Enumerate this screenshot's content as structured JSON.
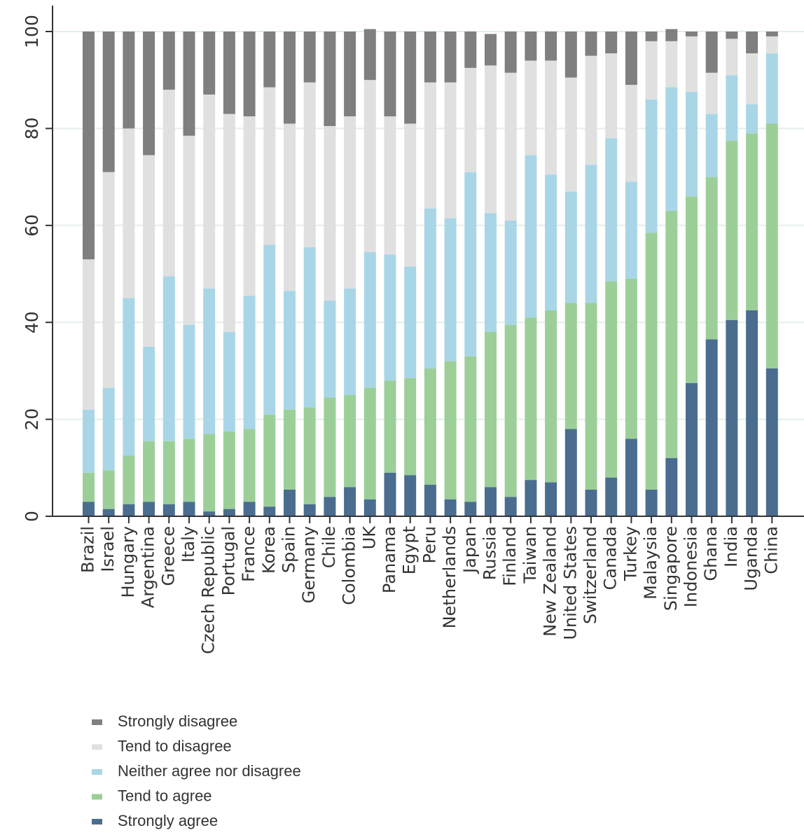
{
  "chart_data": {
    "type": "bar",
    "stacked": true,
    "ylim": [
      0,
      100
    ],
    "yticks": [
      0,
      20,
      40,
      60,
      80,
      100
    ],
    "grid": true,
    "legend_position": "bottom-left",
    "categories": [
      "Brazil",
      "Israel",
      "Hungary",
      "Argentina",
      "Greece",
      "Italy",
      "Czech Republic",
      "Portugal",
      "France",
      "Korea",
      "Spain",
      "Germany",
      "Chile",
      "Colombia",
      "UK",
      "Panama",
      "Egypt",
      "Peru",
      "Netherlands",
      "Japan",
      "Russia",
      "Finland",
      "Taiwan",
      "New Zealand",
      "United States",
      "Switzerland",
      "Canada",
      "Turkey",
      "Malaysia",
      "Singapore",
      "Indonesia",
      "Ghana",
      "India",
      "Uganda",
      "China"
    ],
    "series": [
      {
        "name": "Strongly agree",
        "color": "#4a6d8f",
        "values": [
          3,
          1.5,
          2.5,
          3,
          2.5,
          3,
          1,
          1.5,
          3,
          2,
          5.5,
          2.5,
          4,
          6,
          3.5,
          9,
          8.5,
          6.5,
          3.5,
          3,
          6,
          4,
          7.5,
          7,
          18,
          5.5,
          8,
          16,
          5.5,
          12,
          27.5,
          36.5,
          40.5,
          42.5,
          30.5
        ]
      },
      {
        "name": "Tend to agree",
        "color": "#9ccf98",
        "values": [
          6,
          8,
          10,
          12.5,
          13,
          13,
          16,
          16,
          15,
          19,
          16.5,
          20,
          20.5,
          19,
          23,
          19,
          20,
          24,
          28.5,
          30,
          32,
          35.5,
          33.5,
          35.5,
          26,
          38.5,
          40.5,
          33,
          53,
          51,
          38.5,
          33.5,
          37,
          36.5,
          50.5
        ]
      },
      {
        "name": "Neither agree nor disagree",
        "color": "#a9d6e6",
        "values": [
          13,
          17,
          32.5,
          19.5,
          34,
          23.5,
          30,
          20.5,
          27.5,
          35,
          24.5,
          33,
          20,
          22,
          28,
          26,
          23,
          33,
          29.5,
          38,
          24.5,
          21.5,
          33.5,
          28,
          23,
          28.5,
          29.5,
          20,
          27.5,
          25.5,
          21.5,
          13,
          13.5,
          6,
          14.5
        ]
      },
      {
        "name": "Tend to disagree",
        "color": "#e0e0e0",
        "values": [
          31,
          44.5,
          35,
          39.5,
          38.5,
          39,
          40,
          45,
          37,
          32.5,
          34.5,
          34,
          36,
          35.5,
          35.5,
          28.5,
          29.5,
          26,
          28,
          21.5,
          30.5,
          30.5,
          19.5,
          23.5,
          23.5,
          22.5,
          17.5,
          20,
          12,
          9.5,
          11.5,
          8.5,
          7.5,
          10.5,
          3.5
        ]
      },
      {
        "name": "Strongly disagree",
        "color": "#7f7f7f",
        "values": [
          47,
          29,
          20,
          25.5,
          12,
          21.5,
          13,
          17,
          17.5,
          11.5,
          19,
          10.5,
          19.5,
          17.5,
          10.5,
          17.5,
          19,
          10.5,
          10.5,
          7.5,
          6.5,
          8.5,
          6,
          6,
          9.5,
          5,
          4.5,
          11,
          2,
          2.5,
          1,
          8.5,
          1.5,
          4.5,
          1
        ]
      }
    ]
  }
}
